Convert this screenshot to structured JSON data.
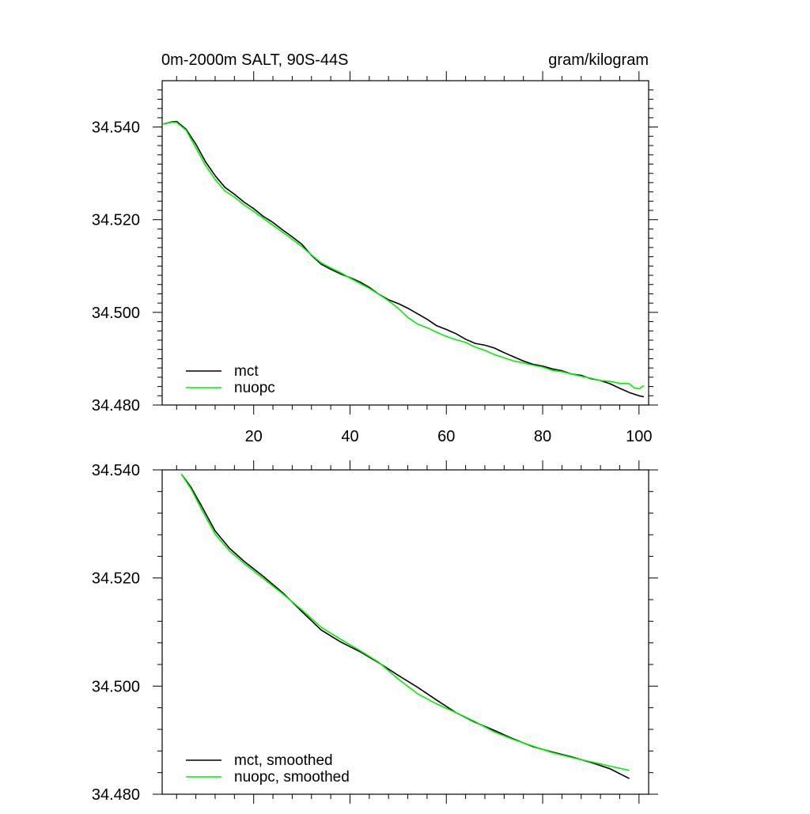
{
  "chart_data": [
    {
      "type": "line",
      "title_left": "0m-2000m SALT, 90S-44S",
      "title_right": "gram/kilogram",
      "xlabel": "",
      "ylabel": "",
      "xlim": [
        1,
        102
      ],
      "ylim": [
        34.48,
        34.55
      ],
      "x_ticks": [
        20,
        40,
        60,
        80,
        100
      ],
      "x_tick_labels": [
        "20",
        "40",
        "60",
        "80",
        "100"
      ],
      "y_ticks": [
        34.48,
        34.5,
        34.52,
        34.54
      ],
      "y_tick_labels": [
        "34.480",
        "34.500",
        "34.520",
        "34.540"
      ],
      "legend_position": "bottom-left",
      "series": [
        {
          "name": "mct",
          "color": "#000000",
          "x": [
            1,
            3,
            4,
            6,
            8,
            10,
            12,
            14,
            16,
            18,
            20,
            22,
            24,
            26,
            28,
            30,
            32,
            34,
            36,
            38,
            40,
            42,
            44,
            46,
            48,
            50,
            52,
            54,
            56,
            58,
            60,
            62,
            64,
            66,
            68,
            70,
            72,
            74,
            76,
            78,
            80,
            82,
            84,
            86,
            88,
            90,
            92,
            94,
            96,
            98,
            100,
            101
          ],
          "values": [
            34.5406,
            34.5411,
            34.5412,
            34.5395,
            34.5363,
            34.5325,
            34.5295,
            34.527,
            34.5255,
            34.5238,
            34.5224,
            34.5207,
            34.5194,
            34.5178,
            34.5163,
            34.5147,
            34.5123,
            34.5104,
            34.5093,
            34.5083,
            34.5075,
            34.5066,
            34.5054,
            34.5039,
            34.5027,
            34.5019,
            34.5009,
            34.4997,
            34.4985,
            34.4971,
            34.4963,
            34.4954,
            34.4942,
            34.4933,
            34.4929,
            34.4923,
            34.4913,
            34.4904,
            34.4895,
            34.4888,
            34.4884,
            34.4878,
            34.4874,
            34.4867,
            34.4864,
            34.4857,
            34.4853,
            34.4846,
            34.4836,
            34.4827,
            34.482,
            34.4818
          ]
        },
        {
          "name": "nuopc",
          "color": "#00ee00",
          "x": [
            1,
            3,
            4,
            6,
            8,
            10,
            12,
            14,
            16,
            18,
            20,
            22,
            24,
            26,
            28,
            30,
            32,
            34,
            36,
            38,
            40,
            42,
            44,
            46,
            48,
            50,
            52,
            54,
            56,
            58,
            60,
            62,
            64,
            66,
            68,
            70,
            72,
            74,
            76,
            78,
            80,
            82,
            84,
            86,
            88,
            90,
            92,
            94,
            96,
            98,
            99,
            100,
            101
          ],
          "values": [
            34.5406,
            34.541,
            34.541,
            34.5393,
            34.5355,
            34.5317,
            34.5287,
            34.5262,
            34.5249,
            34.5232,
            34.5218,
            34.5203,
            34.5188,
            34.5173,
            34.5158,
            34.5142,
            34.5124,
            34.5107,
            34.5096,
            34.5086,
            34.5074,
            34.5063,
            34.5052,
            34.5039,
            34.5025,
            34.5009,
            34.4989,
            34.4975,
            34.4967,
            34.4957,
            34.4948,
            34.4941,
            34.4935,
            34.4925,
            34.4918,
            34.4909,
            34.4902,
            34.4895,
            34.4891,
            34.4886,
            34.4882,
            34.4875,
            34.4872,
            34.4867,
            34.4862,
            34.4858,
            34.4853,
            34.4851,
            34.4847,
            34.4846,
            34.4837,
            34.4835,
            34.4842
          ]
        }
      ]
    },
    {
      "type": "line",
      "xlabel": "",
      "ylabel": "",
      "xlim": [
        1,
        102
      ],
      "ylim": [
        34.48,
        34.54
      ],
      "x_ticks": [
        20,
        40,
        60,
        80,
        100
      ],
      "y_ticks": [
        34.48,
        34.5,
        34.52,
        34.54
      ],
      "y_tick_labels": [
        "34.480",
        "34.500",
        "34.520",
        "34.540"
      ],
      "legend_position": "bottom-left",
      "series": [
        {
          "name": "mct, smoothed",
          "color": "#000000",
          "x": [
            5,
            7,
            9,
            12,
            15,
            18,
            22,
            26,
            30,
            34,
            38,
            42,
            46,
            50,
            54,
            58,
            62,
            66,
            70,
            74,
            78,
            82,
            86,
            90,
            94,
            98
          ],
          "values": [
            34.5392,
            34.5368,
            34.5336,
            34.5287,
            34.5255,
            34.5231,
            34.5203,
            34.5173,
            34.5138,
            34.5104,
            34.5082,
            34.5064,
            34.5043,
            34.502,
            34.4998,
            34.4974,
            34.4951,
            34.4933,
            34.4918,
            34.4902,
            34.4888,
            34.4878,
            34.4869,
            34.4859,
            34.4847,
            34.4829
          ]
        },
        {
          "name": "nuopc, smoothed",
          "color": "#00ee00",
          "x": [
            5,
            7,
            9,
            12,
            15,
            18,
            22,
            26,
            30,
            34,
            38,
            42,
            46,
            50,
            54,
            58,
            62,
            66,
            70,
            74,
            78,
            82,
            86,
            90,
            94,
            98
          ],
          "values": [
            34.5392,
            34.5365,
            34.533,
            34.5281,
            34.525,
            34.5227,
            34.5199,
            34.5171,
            34.5141,
            34.5109,
            34.5087,
            34.5066,
            34.5044,
            34.5013,
            34.4986,
            34.4967,
            34.4951,
            34.4934,
            34.4915,
            34.4901,
            34.4889,
            34.4877,
            34.4868,
            34.486,
            34.4852,
            34.4844
          ]
        }
      ]
    }
  ]
}
